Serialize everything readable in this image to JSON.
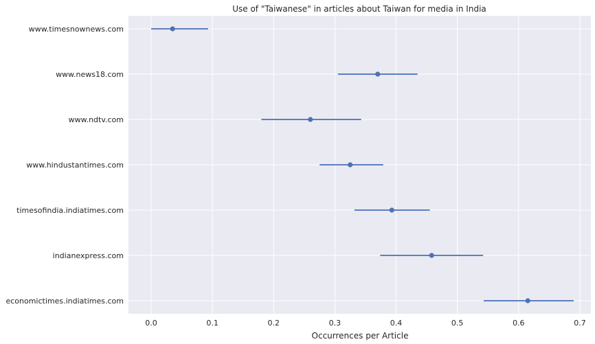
{
  "chart_data": {
    "type": "scatter",
    "subtype": "point-with-error-bars",
    "title": "Use of \"Taiwanese\" in articles about Taiwan for media in India",
    "xlabel": "Occurrences per Article",
    "ylabel": "",
    "xlim": [
      -0.037,
      0.718
    ],
    "xticks": [
      0.0,
      0.1,
      0.2,
      0.3,
      0.4,
      0.5,
      0.6,
      0.7
    ],
    "xtick_labels": [
      "0.0",
      "0.1",
      "0.2",
      "0.3",
      "0.4",
      "0.5",
      "0.6",
      "0.7"
    ],
    "grid": true,
    "categories": [
      "www.timesnownews.com",
      "www.news18.com",
      "www.ndtv.com",
      "www.hindustantimes.com",
      "timesofindia.indiatimes.com",
      "indianexpress.com",
      "economictimes.indiatimes.com"
    ],
    "values": [
      0.035,
      0.37,
      0.26,
      0.325,
      0.393,
      0.458,
      0.615
    ],
    "ci_low": [
      0.0,
      0.305,
      0.18,
      0.275,
      0.332,
      0.374,
      0.543
    ],
    "ci_high": [
      0.093,
      0.435,
      0.343,
      0.379,
      0.455,
      0.542,
      0.69
    ],
    "colors": {
      "marker": "#4c72b0",
      "line": "#5b7fbf",
      "plot_background": "#eaeaf2",
      "grid": "#ffffff",
      "text": "#262626"
    }
  }
}
